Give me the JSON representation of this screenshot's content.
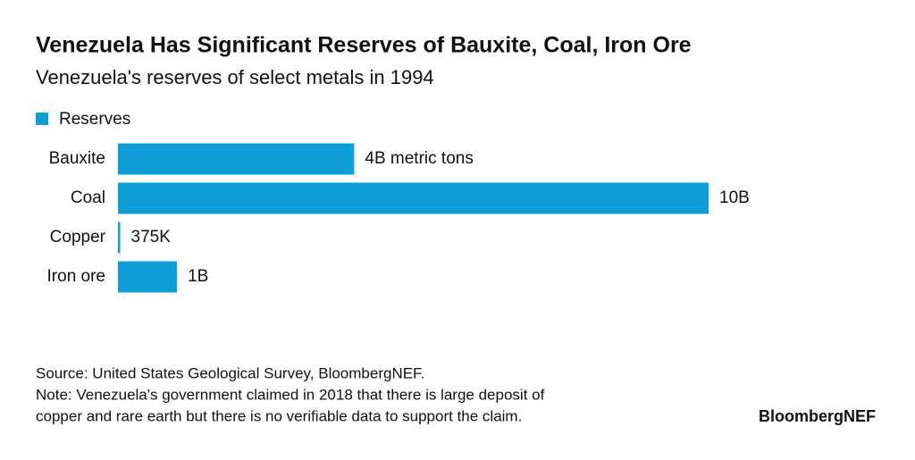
{
  "chart_data": {
    "type": "barh",
    "title": "Venezuela Has Significant Reserves of Bauxite, Coal, Iron Ore",
    "subtitle": "Venezuela's reserves of select metals in 1994",
    "categories": [
      "Bauxite",
      "Coal",
      "Copper",
      "Iron ore"
    ],
    "series": [
      {
        "name": "Reserves",
        "color": "#0f9fd8",
        "values": [
          4000000000,
          10000000000,
          375000,
          1000000000
        ],
        "value_labels": [
          "4B metric tons",
          "10B",
          "375K",
          "1B"
        ]
      }
    ],
    "legend": "top-left",
    "source": "Source: United States Geological Survey, BloombergNEF.",
    "note": [
      "Note: Venezuela's government claimed in 2018 that there is large deposit of",
      "copper and rare earth but there is no verifiable data to support the claim."
    ],
    "brand": "BloombergNEF"
  }
}
